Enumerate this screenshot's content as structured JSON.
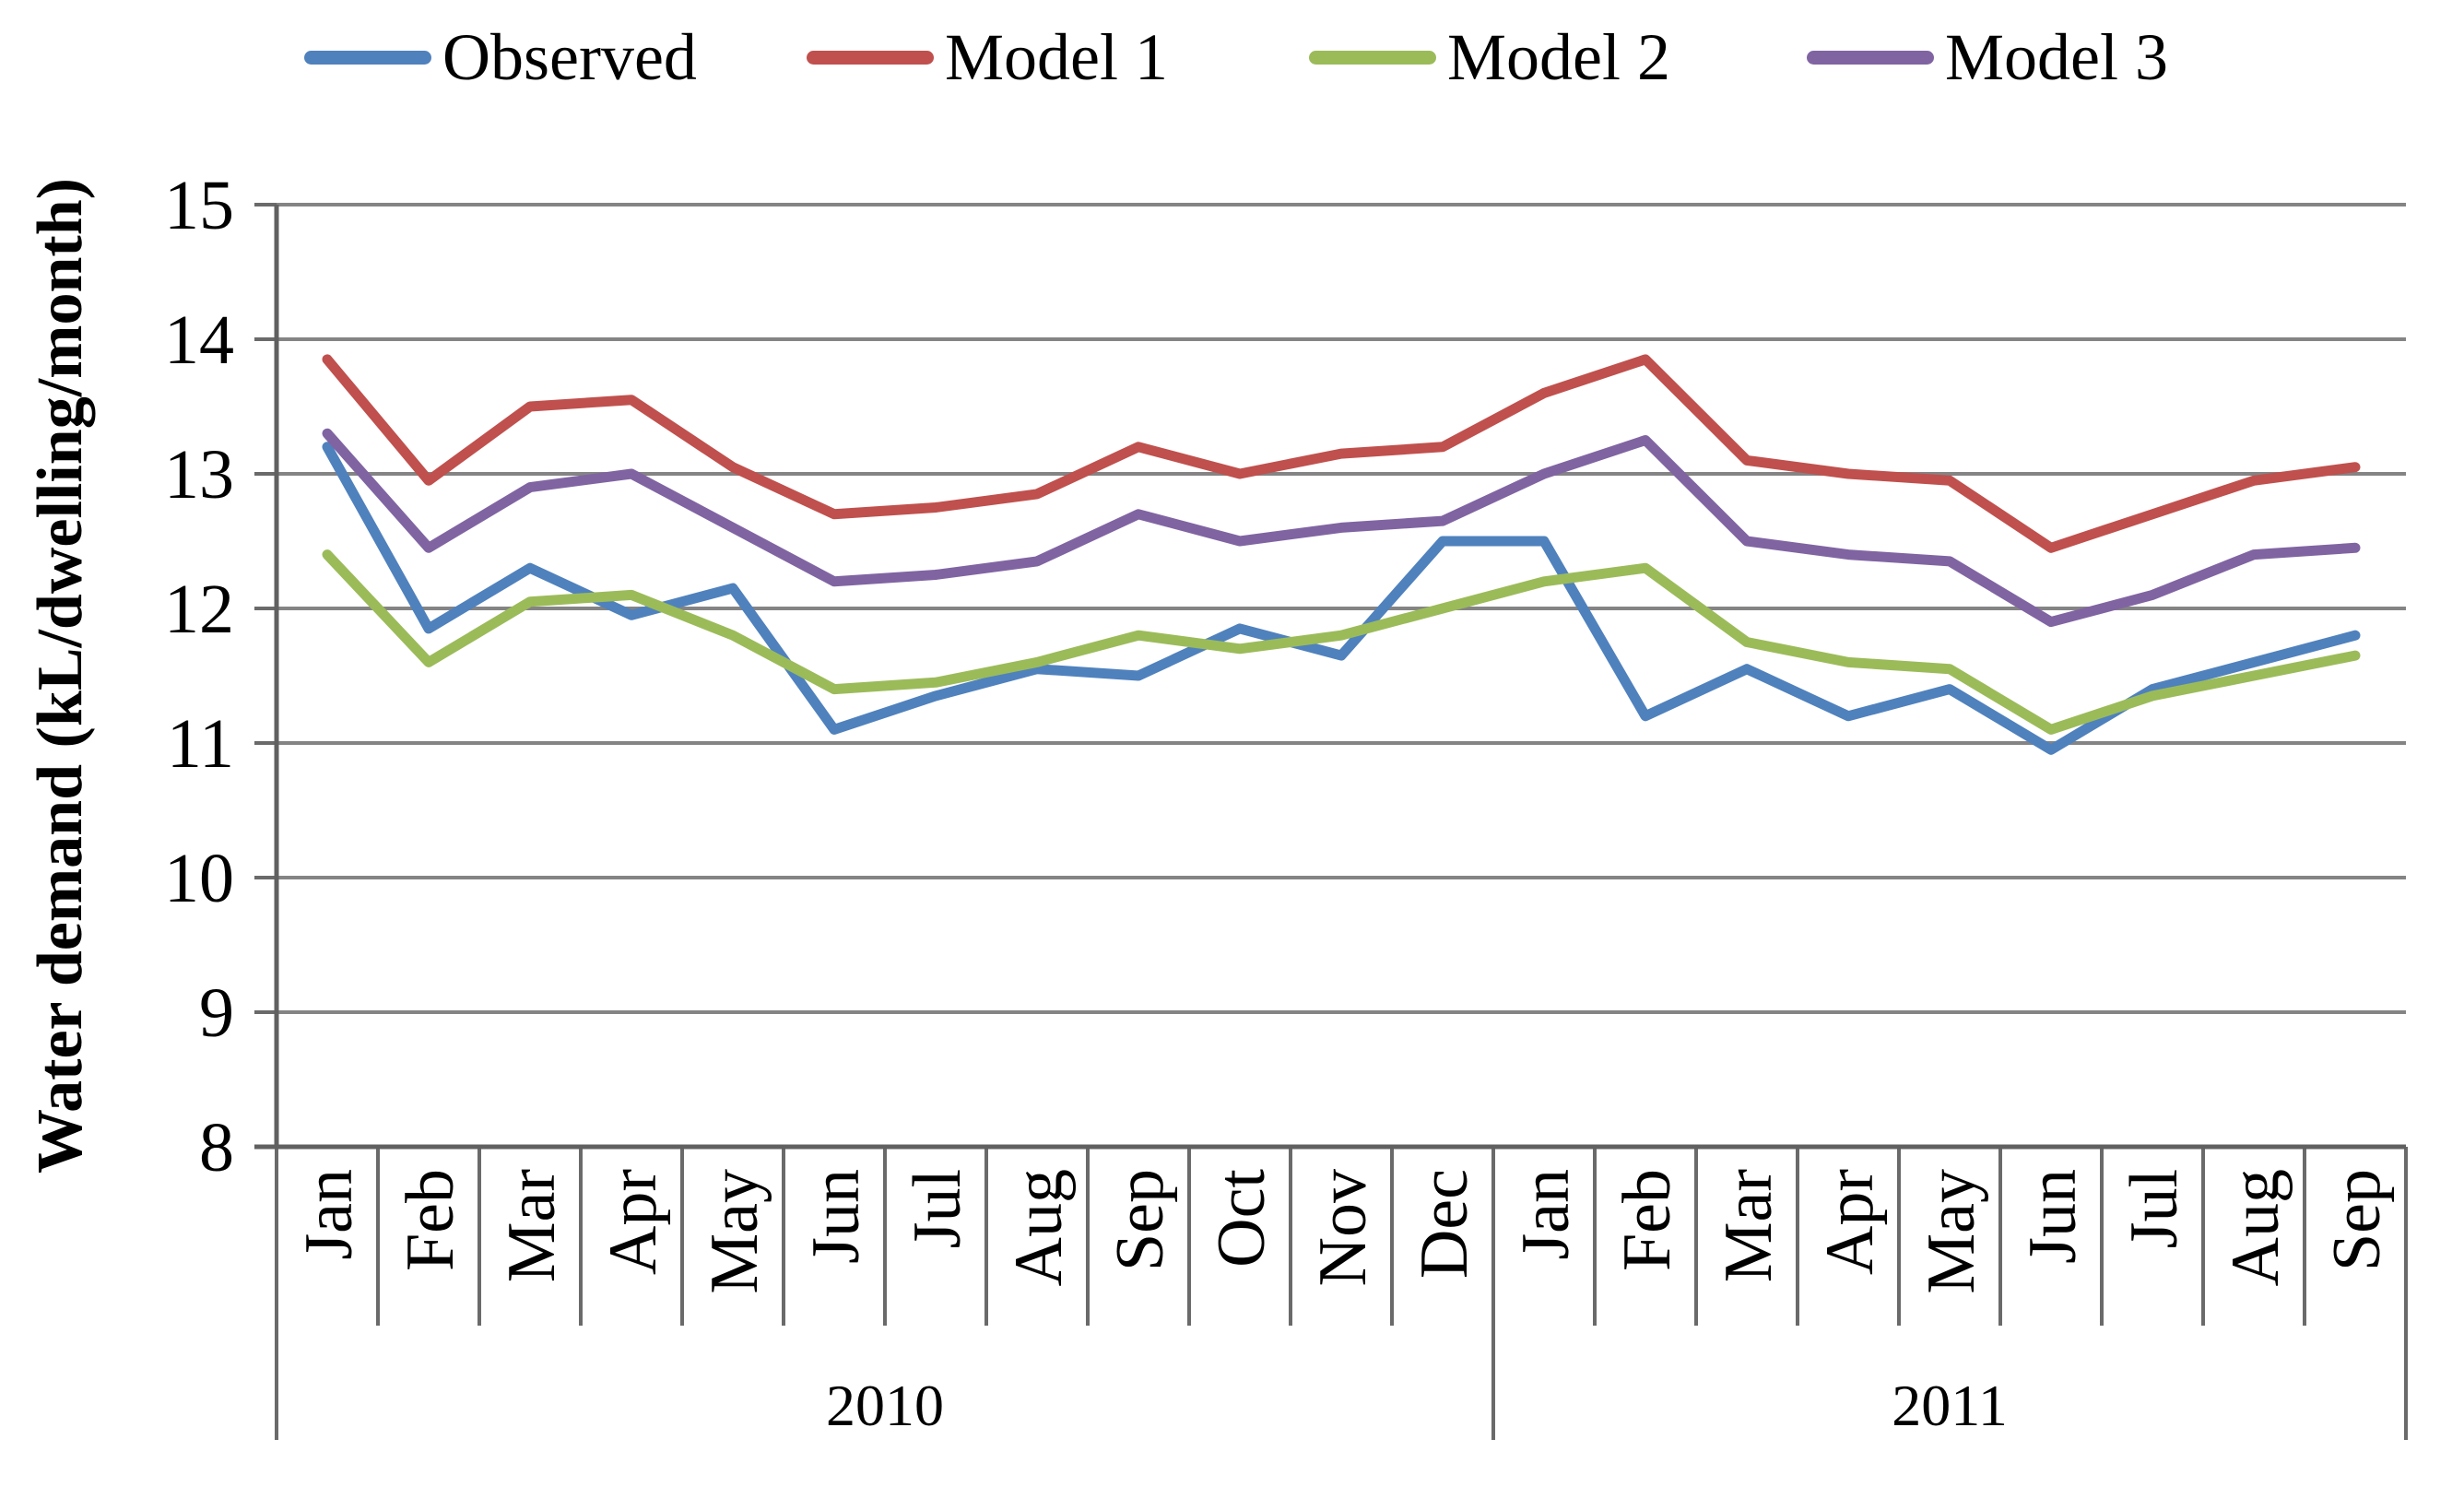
{
  "chart_data": {
    "type": "line",
    "title": "",
    "xlabel": "",
    "ylabel": "Water demand (kL/dwelling/month)",
    "ylim": [
      8,
      15
    ],
    "yticks": [
      15,
      14,
      13,
      12,
      11,
      10,
      9,
      8
    ],
    "grid": "horizontal",
    "legend_position": "top",
    "categories": [
      "Jan",
      "Feb",
      "Mar",
      "Apr",
      "May",
      "Jun",
      "Jul",
      "Aug",
      "Sep",
      "Oct",
      "Nov",
      "Dec",
      "Jan",
      "Feb",
      "Mar",
      "Apr",
      "May",
      "Jun",
      "Jul",
      "Aug",
      "Sep"
    ],
    "year_groups": [
      {
        "label": "2010",
        "span": 12
      },
      {
        "label": "2011",
        "span": 9
      }
    ],
    "series": [
      {
        "name": "Observed",
        "color": "#4F81BD",
        "values": [
          13.2,
          11.85,
          12.3,
          11.95,
          12.15,
          11.1,
          11.35,
          11.55,
          11.5,
          11.85,
          11.65,
          12.5,
          12.5,
          11.2,
          11.55,
          11.2,
          11.4,
          10.95,
          11.4,
          11.6,
          11.8
        ]
      },
      {
        "name": "Model 1",
        "color": "#C0504D",
        "values": [
          13.85,
          12.95,
          13.5,
          13.55,
          13.05,
          12.7,
          12.75,
          12.85,
          13.2,
          13.0,
          13.15,
          13.2,
          13.6,
          13.85,
          13.1,
          13.0,
          12.95,
          12.45,
          12.7,
          12.95,
          13.05
        ]
      },
      {
        "name": "Model 2",
        "color": "#9BBB59",
        "values": [
          12.4,
          11.6,
          12.05,
          12.1,
          11.8,
          11.4,
          11.45,
          11.6,
          11.8,
          11.7,
          11.8,
          12.0,
          12.2,
          12.3,
          11.75,
          11.6,
          11.55,
          11.1,
          11.35,
          11.5,
          11.65
        ]
      },
      {
        "name": "Model 3",
        "color": "#8064A2",
        "values": [
          13.3,
          12.45,
          12.9,
          13.0,
          12.6,
          12.2,
          12.25,
          12.35,
          12.7,
          12.5,
          12.6,
          12.65,
          13.0,
          13.25,
          12.5,
          12.4,
          12.35,
          11.9,
          12.1,
          12.4,
          12.45
        ]
      }
    ],
    "colors": {
      "gridline": "#848484",
      "axis": "#606060",
      "text": "#000000"
    }
  }
}
